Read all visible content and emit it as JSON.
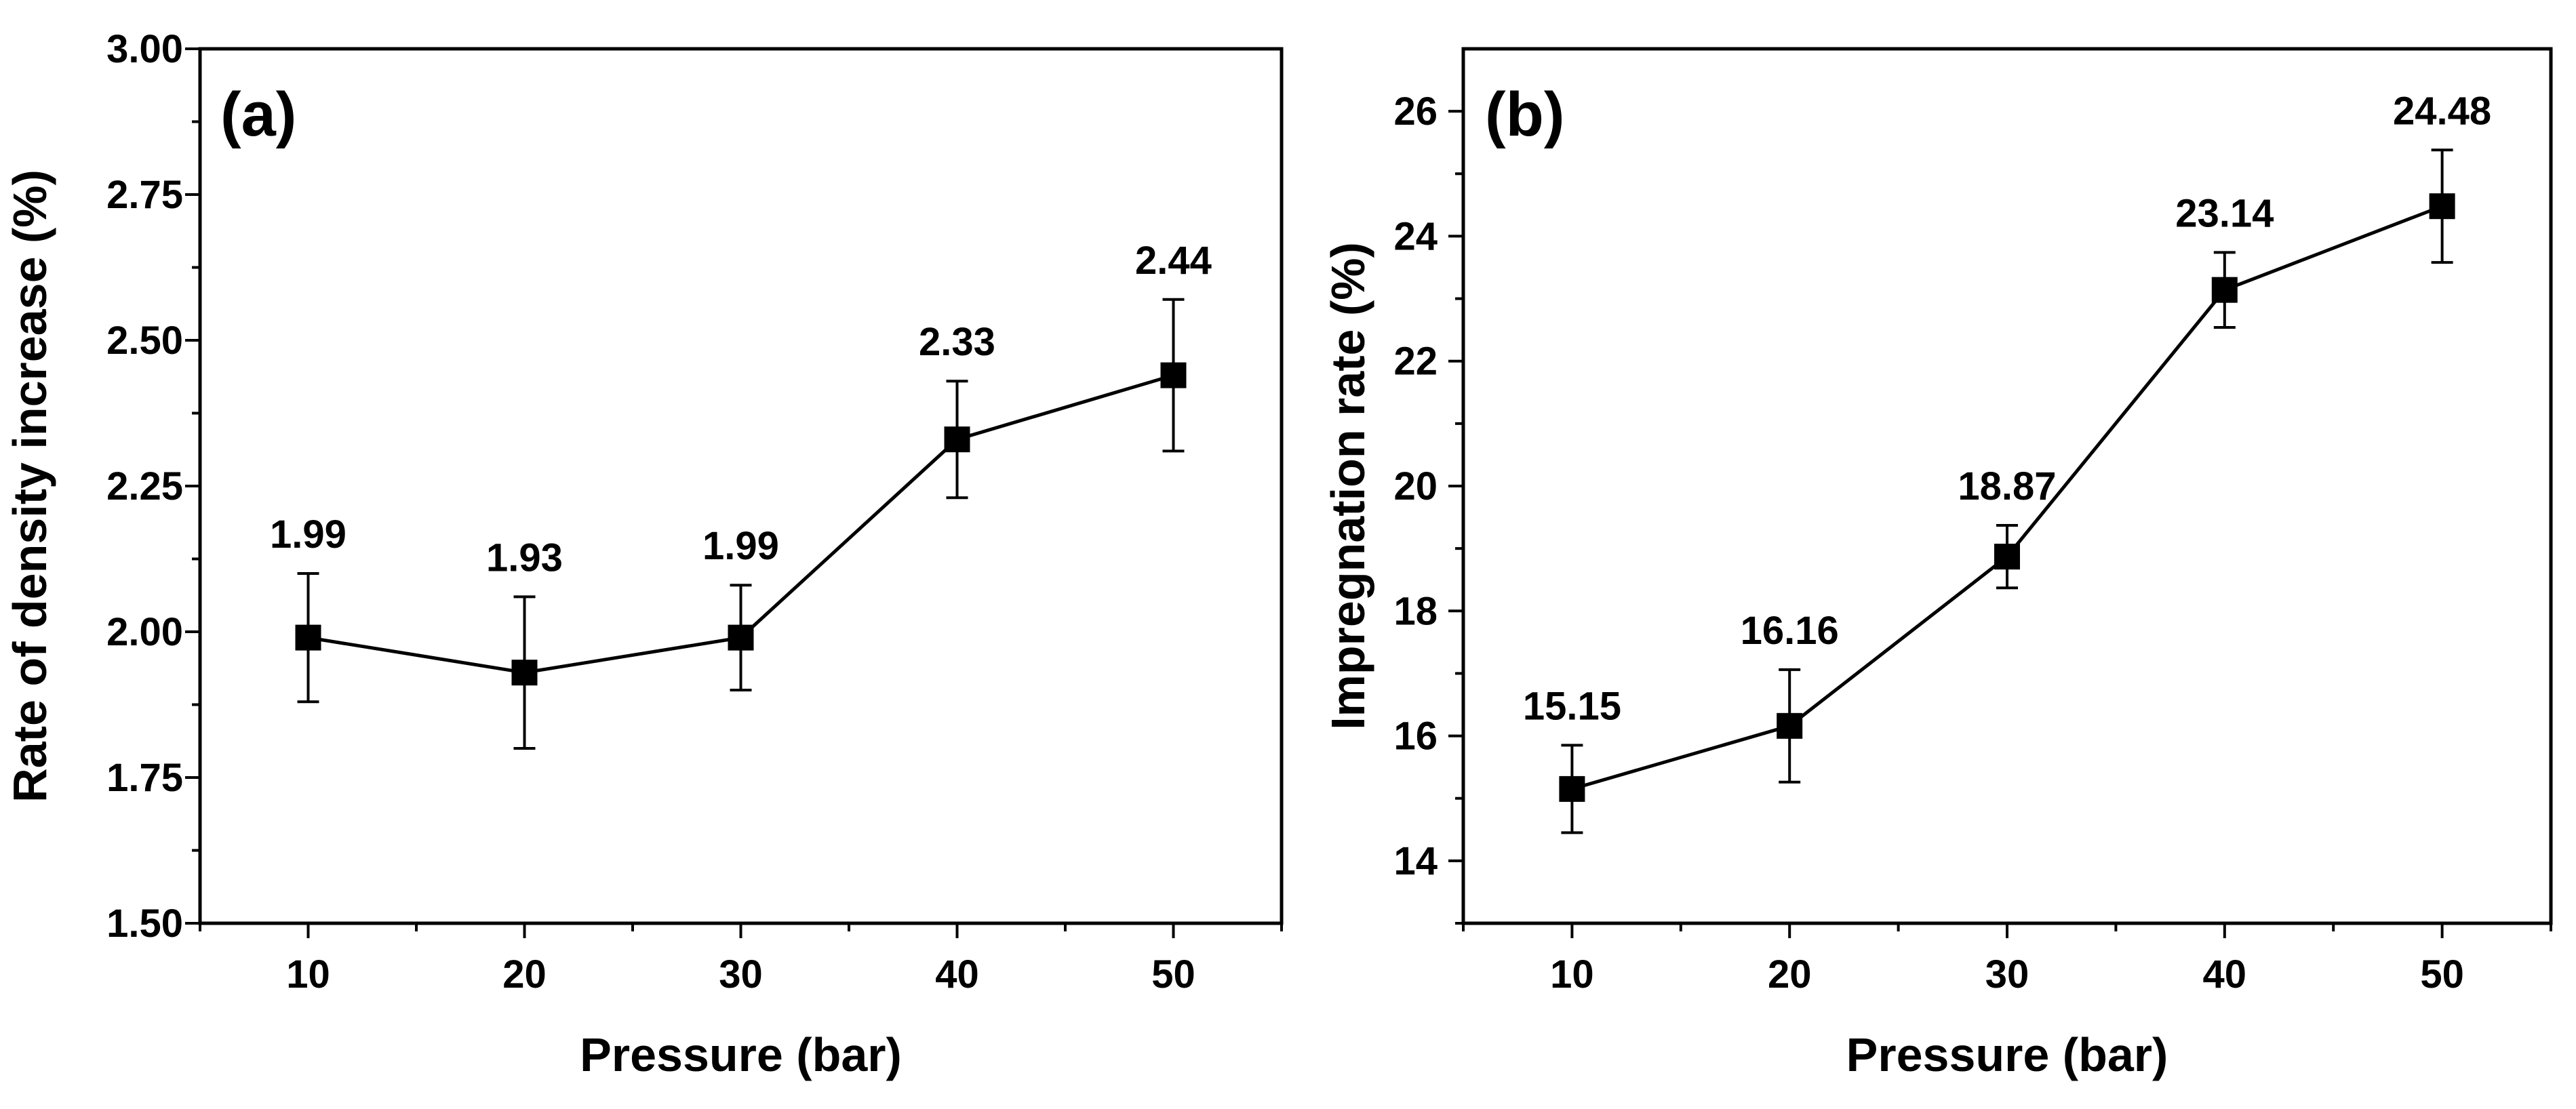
{
  "chart_data": [
    {
      "type": "line",
      "panel_label": "(a)",
      "title": "",
      "xlabel": "Pressure (bar)",
      "ylabel": "Rate of density increase (%)",
      "x": [
        10,
        20,
        30,
        40,
        50
      ],
      "values": [
        1.99,
        1.93,
        1.99,
        2.33,
        2.44
      ],
      "errors": [
        0.11,
        0.13,
        0.09,
        0.1,
        0.13
      ],
      "data_labels": [
        "1.99",
        "1.93",
        "1.99",
        "2.33",
        "2.44"
      ],
      "xlim": [
        5,
        55
      ],
      "ylim": [
        1.5,
        3.0
      ],
      "xticks": [
        10,
        20,
        30,
        40,
        50
      ],
      "xtick_labels": [
        "10",
        "20",
        "30",
        "40",
        "50"
      ],
      "yticks": [
        1.5,
        1.75,
        2.0,
        2.25,
        2.5,
        2.75,
        3.0
      ],
      "ytick_labels": [
        "1.50",
        "1.75",
        "2.00",
        "2.25",
        "2.50",
        "2.75",
        "3.00"
      ],
      "marker": "square",
      "grid": false
    },
    {
      "type": "line",
      "panel_label": "(b)",
      "title": "",
      "xlabel": "Pressure (bar)",
      "ylabel": "Impregnation rate (%)",
      "x": [
        10,
        20,
        30,
        40,
        50
      ],
      "values": [
        15.15,
        16.16,
        18.87,
        23.14,
        24.48
      ],
      "errors": [
        0.7,
        0.9,
        0.5,
        0.6,
        0.9
      ],
      "data_labels": [
        "15.15",
        "16.16",
        "18.87",
        "23.14",
        "24.48"
      ],
      "xlim": [
        5,
        55
      ],
      "ylim": [
        13,
        27
      ],
      "xticks": [
        10,
        20,
        30,
        40,
        50
      ],
      "xtick_labels": [
        "10",
        "20",
        "30",
        "40",
        "50"
      ],
      "yticks": [
        14,
        16,
        18,
        20,
        22,
        24,
        26
      ],
      "ytick_labels": [
        "14",
        "16",
        "18",
        "20",
        "22",
        "24",
        "26"
      ],
      "marker": "square",
      "grid": false
    }
  ],
  "colors": {
    "line": "#000000",
    "marker": "#000000",
    "background": "#ffffff"
  }
}
